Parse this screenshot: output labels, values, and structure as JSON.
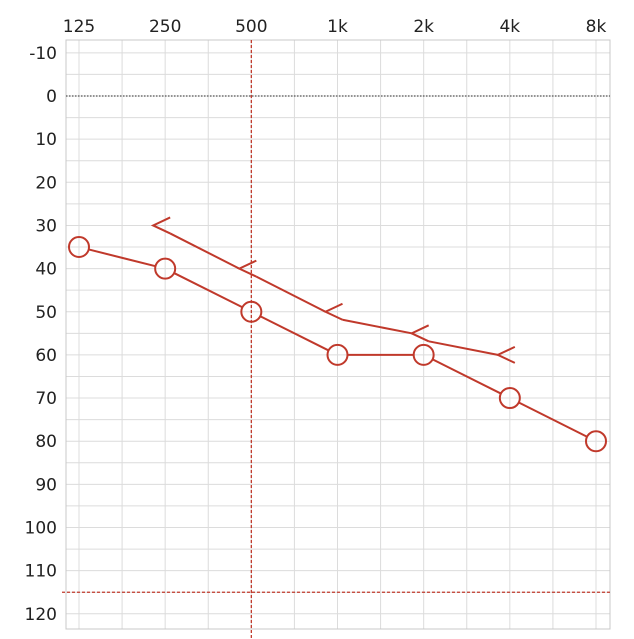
{
  "chart_data": {
    "type": "line",
    "title": "",
    "xlabel": "",
    "ylabel": "",
    "x_scale": "log2",
    "x_ticks": [
      {
        "value": 125,
        "label": "125"
      },
      {
        "value": 250,
        "label": "250"
      },
      {
        "value": 500,
        "label": "500"
      },
      {
        "value": 1000,
        "label": "1k"
      },
      {
        "value": 2000,
        "label": "2k"
      },
      {
        "value": 4000,
        "label": "4k"
      },
      {
        "value": 8000,
        "label": "8k"
      }
    ],
    "y_ticks": [
      -10,
      0,
      10,
      20,
      30,
      40,
      50,
      60,
      70,
      80,
      90,
      100,
      110,
      120
    ],
    "ylim": [
      -10,
      120
    ],
    "y_inverted": true,
    "grid": true,
    "colors": {
      "series": "#c0392b",
      "reference": "#c0392b",
      "grid": "#dcdcdc",
      "zero_line": "#555555"
    },
    "reference_lines": {
      "zero_line_y": 0,
      "horizontal_y": 115,
      "vertical_x": 500
    },
    "series": [
      {
        "marker": "circle",
        "x": [
          125,
          250,
          500,
          1000,
          2000,
          4000,
          8000
        ],
        "y": [
          35,
          40,
          50,
          60,
          60,
          70,
          80
        ]
      },
      {
        "marker": "less-than",
        "x": [
          250,
          500,
          1000,
          2000,
          4000
        ],
        "y": [
          30,
          40,
          50,
          55,
          60
        ]
      }
    ]
  }
}
